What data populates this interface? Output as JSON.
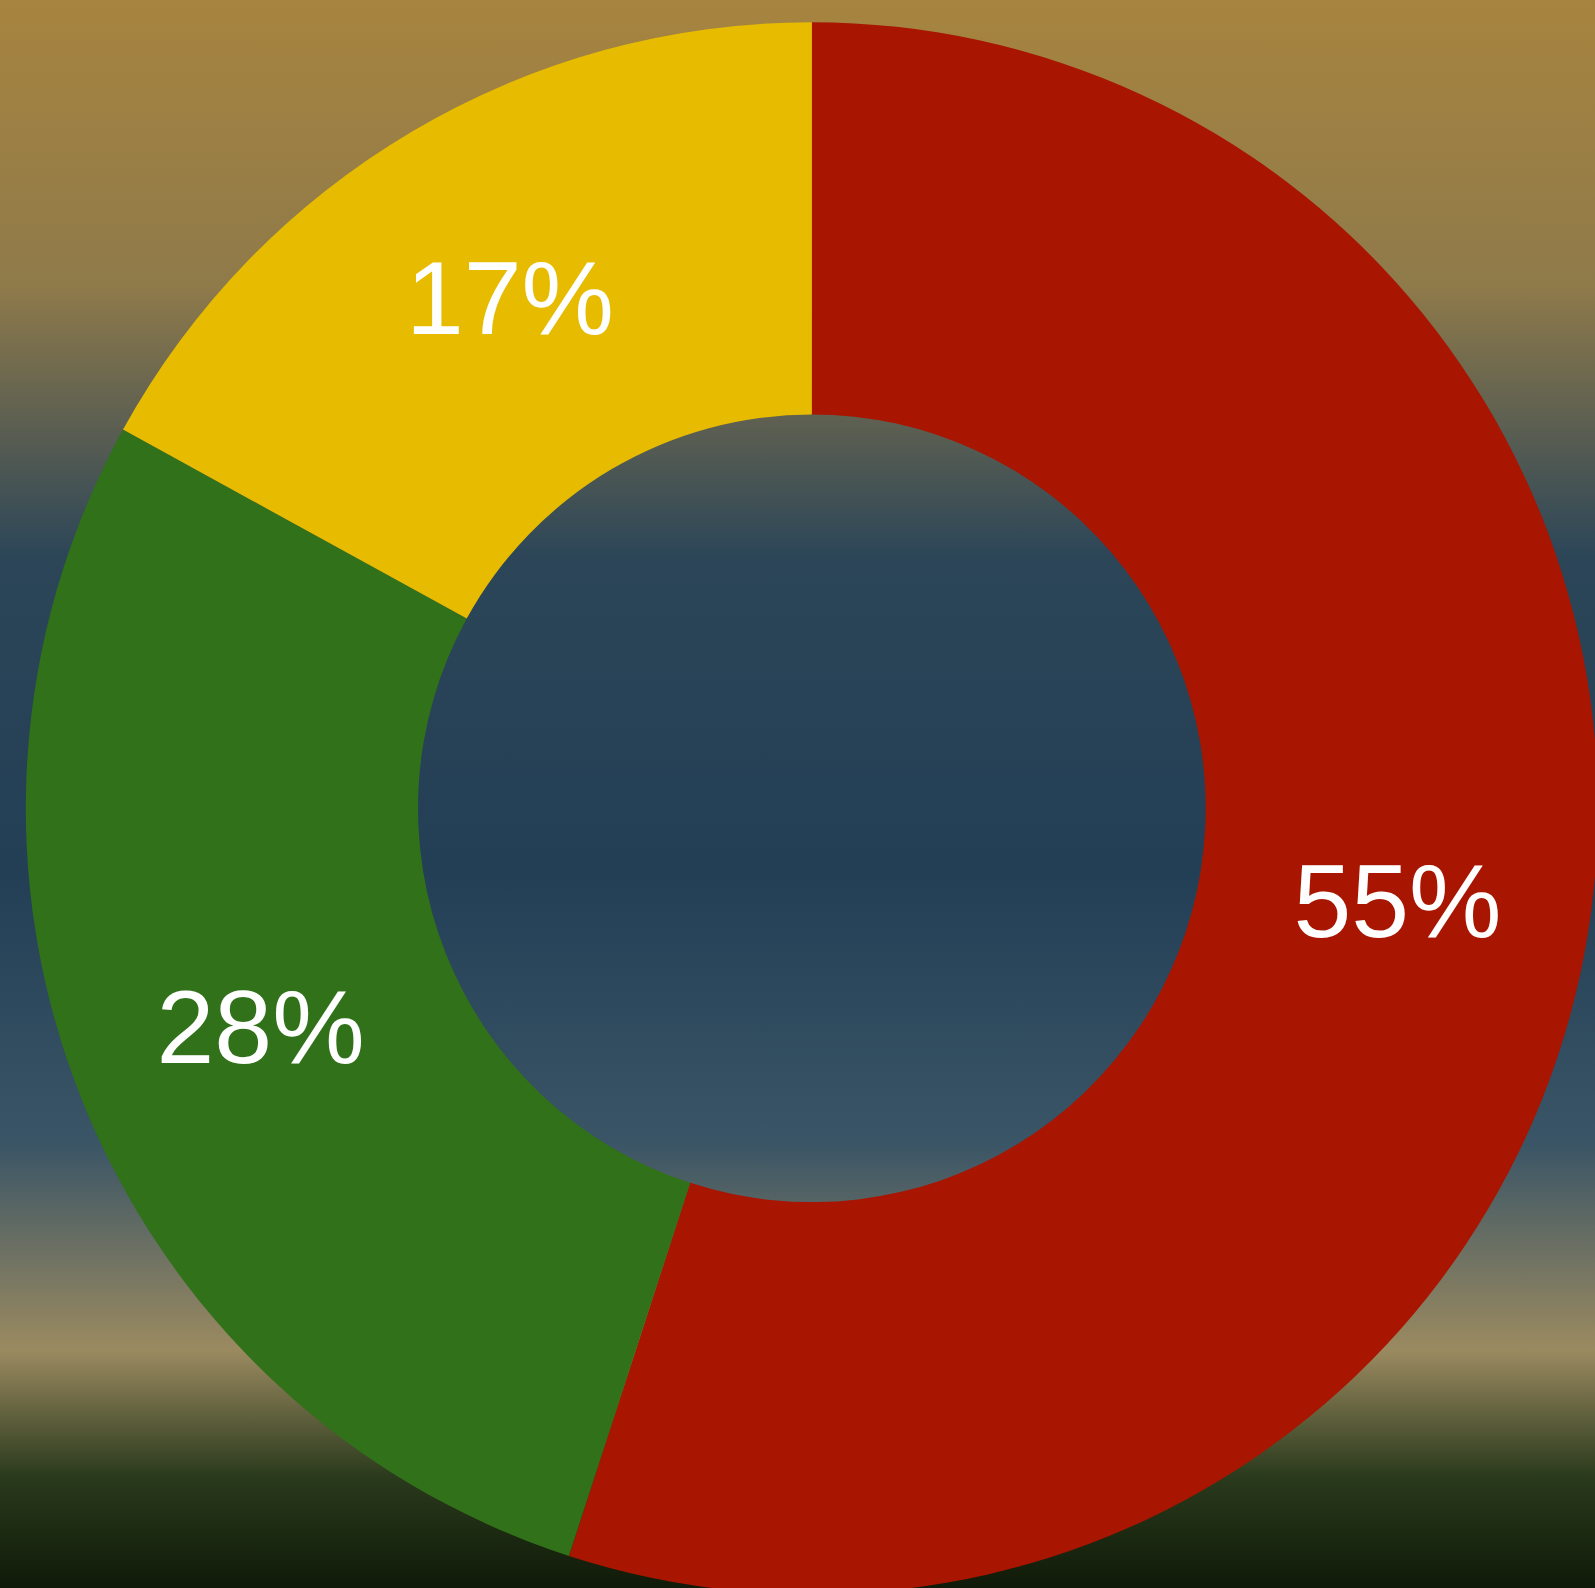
{
  "chart_data": {
    "type": "pie",
    "values": [
      55,
      28,
      17
    ],
    "value_labels": [
      "55%",
      "28%",
      "17%"
    ],
    "colors": [
      "#a81500",
      "#317119",
      "#e6bb00"
    ],
    "data_labels": true
  }
}
